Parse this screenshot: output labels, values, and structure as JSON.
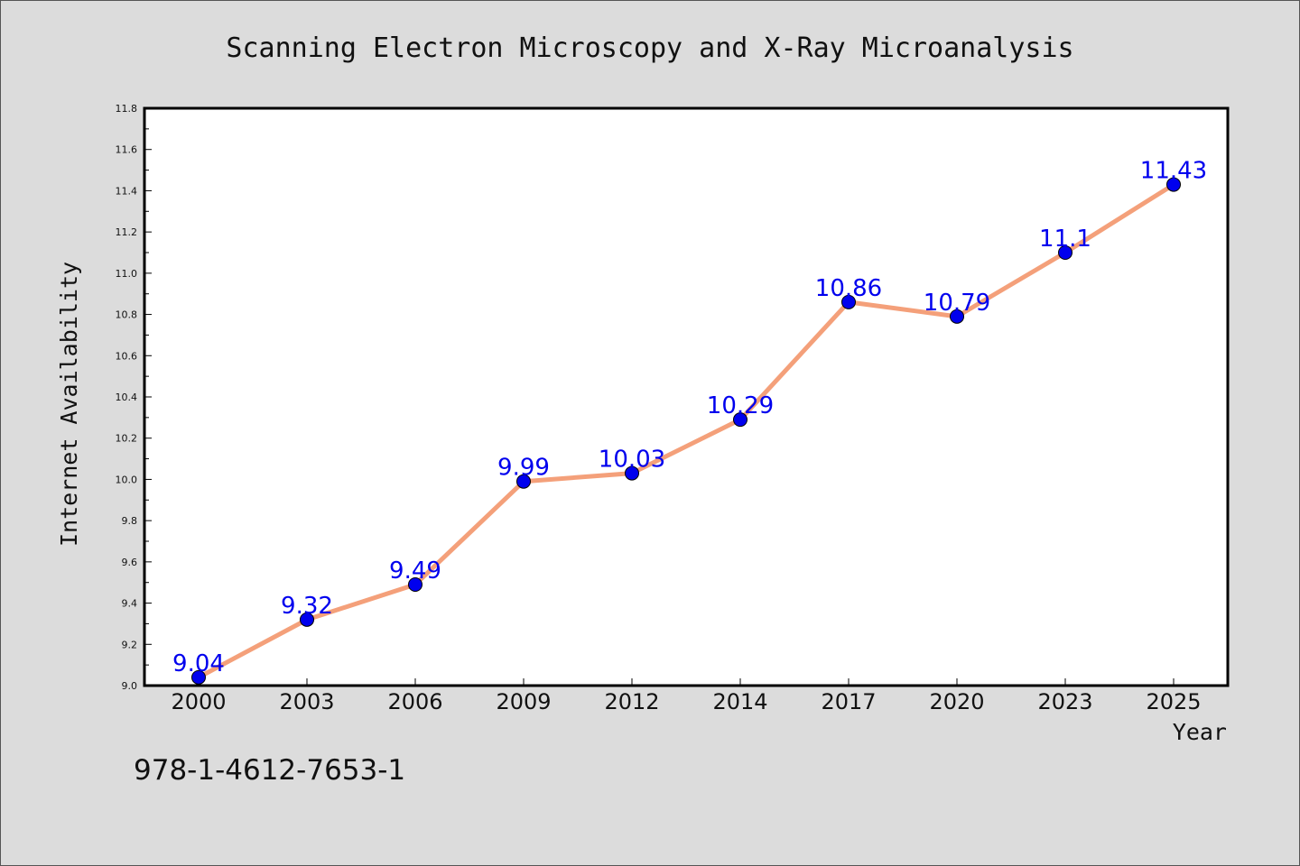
{
  "chart_data": {
    "type": "line",
    "title": "Scanning Electron Microscopy and X-Ray Microanalysis",
    "xlabel": "Year",
    "ylabel": "Internet Availability",
    "categories": [
      "2000",
      "2003",
      "2006",
      "2009",
      "2012",
      "2014",
      "2017",
      "2020",
      "2023",
      "2025"
    ],
    "series": [
      {
        "values": [
          9.04,
          9.32,
          9.49,
          9.99,
          10.03,
          10.29,
          10.86,
          10.79,
          11.1,
          11.43
        ],
        "labels": [
          "9.04",
          "9.32",
          "9.49",
          "9.99",
          "10.03",
          "10.29",
          "10.86",
          "10.79",
          "11.1",
          "11.43"
        ],
        "line_color": "#f4a07a",
        "marker_color": "#0000ee"
      }
    ],
    "ylim": [
      9.0,
      11.8
    ],
    "yticks": [
      "9.0",
      "9.2",
      "9.4",
      "9.6",
      "9.8",
      "10.0",
      "10.2",
      "10.4",
      "10.6",
      "10.8",
      "11.0",
      "11.2",
      "11.4",
      "11.6",
      "11.8"
    ],
    "grid": false,
    "legend": "none"
  },
  "footer": {
    "isbn": "978-1-4612-7653-1"
  }
}
